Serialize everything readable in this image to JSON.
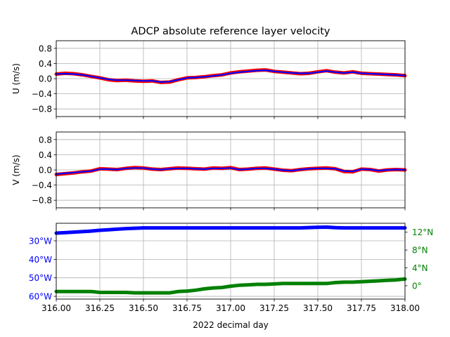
{
  "figure": {
    "title": "ADCP absolute reference layer velocity",
    "xlabel": "2022 decimal day"
  },
  "colors": {
    "raw": "#ff0000",
    "smoothed": "#0000ff",
    "longitude": "#0000ff",
    "latitude": "#008000",
    "grid": "#b0b0b0",
    "axes": "#000000"
  },
  "chart_data": [
    {
      "type": "line",
      "panel": "U",
      "ylabel": "U (m/s)",
      "xlim": [
        316.0,
        318.0
      ],
      "ylim": [
        -1.0,
        1.0
      ],
      "yticks": [
        0.8,
        0.4,
        0.0,
        -0.4,
        -0.8
      ],
      "ytick_labels": [
        "0.8",
        "0.4",
        "0.0",
        "−0.4",
        "−0.8"
      ],
      "grid": true,
      "x": [
        316.0,
        316.05,
        316.1,
        316.15,
        316.2,
        316.25,
        316.3,
        316.35,
        316.4,
        316.45,
        316.5,
        316.55,
        316.6,
        316.65,
        316.7,
        316.75,
        316.8,
        316.85,
        316.9,
        316.95,
        317.0,
        317.05,
        317.1,
        317.15,
        317.2,
        317.25,
        317.3,
        317.35,
        317.4,
        317.45,
        317.5,
        317.55,
        317.6,
        317.65,
        317.7,
        317.75,
        317.8,
        317.85,
        317.9,
        317.95,
        318.0
      ],
      "series": [
        {
          "values": [
            0.12,
            0.14,
            0.13,
            0.1,
            0.06,
            0.02,
            -0.03,
            -0.05,
            -0.04,
            -0.06,
            -0.07,
            -0.06,
            -0.1,
            -0.09,
            -0.03,
            0.02,
            0.03,
            0.05,
            0.08,
            0.1,
            0.15,
            0.18,
            0.2,
            0.22,
            0.23,
            0.19,
            0.17,
            0.15,
            0.13,
            0.14,
            0.18,
            0.21,
            0.17,
            0.15,
            0.18,
            0.14,
            0.13,
            0.12,
            0.11,
            0.1,
            0.08
          ]
        },
        {
          "values": [
            0.12,
            0.13,
            0.12,
            0.1,
            0.06,
            0.02,
            -0.02,
            -0.04,
            -0.04,
            -0.05,
            -0.06,
            -0.06,
            -0.09,
            -0.08,
            -0.03,
            0.02,
            0.03,
            0.05,
            0.07,
            0.1,
            0.14,
            0.17,
            0.19,
            0.21,
            0.22,
            0.19,
            0.17,
            0.15,
            0.14,
            0.14,
            0.17,
            0.2,
            0.17,
            0.15,
            0.17,
            0.14,
            0.13,
            0.12,
            0.11,
            0.1,
            0.08
          ]
        }
      ]
    },
    {
      "type": "line",
      "panel": "V",
      "ylabel": "V (m/s)",
      "xlim": [
        316.0,
        318.0
      ],
      "ylim": [
        -1.0,
        1.0
      ],
      "yticks": [
        0.8,
        0.4,
        0.0,
        -0.4,
        -0.8
      ],
      "ytick_labels": [
        "0.8",
        "0.4",
        "0.0",
        "−0.4",
        "−0.8"
      ],
      "grid": true,
      "x": [
        316.0,
        316.05,
        316.1,
        316.15,
        316.2,
        316.25,
        316.3,
        316.35,
        316.4,
        316.45,
        316.5,
        316.55,
        316.6,
        316.65,
        316.7,
        316.75,
        316.8,
        316.85,
        316.9,
        316.95,
        317.0,
        317.05,
        317.1,
        317.15,
        317.2,
        317.25,
        317.3,
        317.35,
        317.4,
        317.45,
        317.5,
        317.55,
        317.6,
        317.65,
        317.7,
        317.75,
        317.8,
        317.85,
        317.9,
        317.95,
        318.0
      ],
      "series": [
        {
          "values": [
            -0.12,
            -0.1,
            -0.08,
            -0.05,
            -0.03,
            0.03,
            0.02,
            0.01,
            0.04,
            0.06,
            0.05,
            0.02,
            0.01,
            0.03,
            0.05,
            0.04,
            0.03,
            0.02,
            0.05,
            0.04,
            0.06,
            0.01,
            0.02,
            0.04,
            0.05,
            0.02,
            -0.01,
            -0.02,
            0.01,
            0.03,
            0.04,
            0.05,
            0.03,
            -0.04,
            -0.05,
            0.02,
            0.01,
            -0.03,
            0.0,
            0.01,
            0.0
          ]
        },
        {
          "values": [
            -0.11,
            -0.09,
            -0.07,
            -0.05,
            -0.03,
            0.02,
            0.02,
            0.01,
            0.04,
            0.05,
            0.05,
            0.02,
            0.01,
            0.03,
            0.04,
            0.04,
            0.03,
            0.02,
            0.04,
            0.04,
            0.05,
            0.01,
            0.02,
            0.04,
            0.04,
            0.02,
            -0.01,
            -0.02,
            0.01,
            0.03,
            0.04,
            0.04,
            0.03,
            -0.03,
            -0.04,
            0.02,
            0.01,
            -0.02,
            0.0,
            0.01,
            0.0
          ]
        }
      ]
    },
    {
      "type": "line",
      "panel": "position",
      "xlim": [
        316.0,
        318.0
      ],
      "xticks": [
        316.0,
        316.25,
        316.5,
        316.75,
        317.0,
        317.25,
        317.5,
        317.75,
        318.0
      ],
      "xtick_labels": [
        "316.00",
        "316.25",
        "316.50",
        "316.75",
        "317.00",
        "317.25",
        "317.50",
        "317.75",
        "318.00"
      ],
      "grid": true,
      "left_axis": {
        "ylim": [
          -61.5,
          -20.5
        ],
        "yticks": [
          -30,
          -40,
          -50,
          -60
        ],
        "ytick_labels": [
          "30°W",
          "40°W",
          "50°W",
          "60°W"
        ]
      },
      "right_axis": {
        "ylim": [
          -3.0,
          14.0
        ],
        "yticks": [
          12,
          8,
          4,
          0
        ],
        "ytick_labels": [
          "12°N",
          "8°N",
          "4°N",
          "0°"
        ]
      },
      "x": [
        316.0,
        316.05,
        316.1,
        316.15,
        316.2,
        316.25,
        316.3,
        316.35,
        316.4,
        316.45,
        316.5,
        316.55,
        316.6,
        316.65,
        316.7,
        316.75,
        316.8,
        316.85,
        316.9,
        316.95,
        317.0,
        317.05,
        317.1,
        317.15,
        317.2,
        317.25,
        317.3,
        317.35,
        317.4,
        317.45,
        317.5,
        317.55,
        317.6,
        317.65,
        317.7,
        317.75,
        317.8,
        317.85,
        317.9,
        317.95,
        318.0
      ],
      "series": [
        {
          "axis": "left",
          "values": [
            -25.8,
            -25.6,
            -25.3,
            -25.0,
            -24.7,
            -24.3,
            -24.0,
            -23.7,
            -23.4,
            -23.2,
            -23.0,
            -23.0,
            -23.0,
            -23.0,
            -23.0,
            -23.0,
            -23.0,
            -23.0,
            -23.0,
            -23.0,
            -23.0,
            -23.0,
            -23.0,
            -23.0,
            -23.0,
            -23.0,
            -23.0,
            -23.0,
            -23.0,
            -22.8,
            -22.7,
            -22.6,
            -22.9,
            -23.0,
            -23.0,
            -23.0,
            -23.0,
            -23.0,
            -23.0,
            -23.0,
            -23.0
          ]
        },
        {
          "axis": "right",
          "values": [
            -1.3,
            -1.3,
            -1.3,
            -1.3,
            -1.3,
            -1.5,
            -1.5,
            -1.5,
            -1.5,
            -1.6,
            -1.6,
            -1.6,
            -1.6,
            -1.6,
            -1.3,
            -1.2,
            -1.0,
            -0.7,
            -0.5,
            -0.4,
            -0.1,
            0.1,
            0.2,
            0.3,
            0.3,
            0.4,
            0.5,
            0.5,
            0.5,
            0.5,
            0.5,
            0.5,
            0.7,
            0.8,
            0.8,
            0.9,
            1.0,
            1.1,
            1.2,
            1.3,
            1.5
          ]
        }
      ]
    }
  ]
}
